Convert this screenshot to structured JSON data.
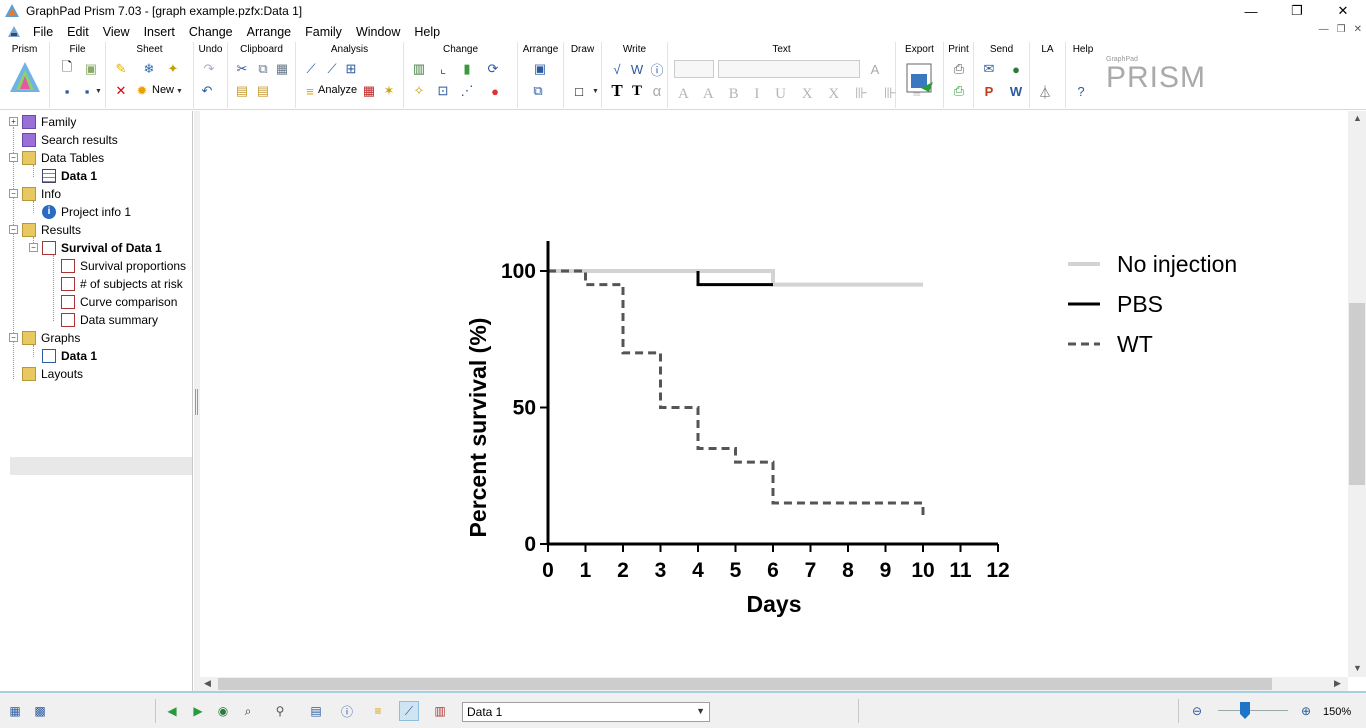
{
  "window": {
    "title": "GraphPad Prism 7.03 - [graph example.pzfx:Data 1]",
    "minimize": "—",
    "restore": "❐",
    "close": "✕"
  },
  "menu": [
    "File",
    "Edit",
    "View",
    "Insert",
    "Change",
    "Arrange",
    "Family",
    "Window",
    "Help"
  ],
  "ribbon": {
    "groups": [
      "Prism",
      "File",
      "Sheet",
      "Undo",
      "Clipboard",
      "Analysis",
      "Change",
      "Arrange",
      "Draw",
      "Write",
      "Text",
      "Export",
      "Print",
      "Send",
      "LA",
      "Help"
    ],
    "new_label": "New",
    "analyze_label": "Analyze",
    "logo_small": "GraphPad",
    "logo_big": "PRISM",
    "write_alpha": "α"
  },
  "navigator": {
    "family": "Family",
    "search_results": "Search results",
    "data_tables": "Data Tables",
    "data_table_1": "Data 1",
    "info": "Info",
    "project_info": "Project info 1",
    "results": "Results",
    "survival": "Survival of Data 1",
    "survival_children": [
      "Survival proportions",
      "# of subjects at risk",
      "Curve comparison",
      "Data summary"
    ],
    "graphs": "Graphs",
    "graph_1": "Data 1",
    "layouts": "Layouts"
  },
  "chart_data": {
    "type": "line",
    "subtype": "survival-step",
    "title": "",
    "xlabel": "Days",
    "ylabel": "Percent survival (%)",
    "xlim": [
      0,
      12
    ],
    "ylim": [
      0,
      100
    ],
    "xticks": [
      "0",
      "1",
      "2",
      "3",
      "4",
      "5",
      "6",
      "7",
      "8",
      "9",
      "10",
      "11",
      "12"
    ],
    "yticks": [
      "0",
      "50",
      "100"
    ],
    "legend_position": "top-right",
    "grid": false,
    "series": [
      {
        "name": "No injection",
        "color": "#d3d3d3",
        "dash": "solid",
        "steps": [
          [
            0,
            100
          ],
          [
            6,
            95
          ],
          [
            10,
            95
          ]
        ]
      },
      {
        "name": "PBS",
        "color": "#000000",
        "dash": "solid",
        "steps": [
          [
            4,
            100
          ],
          [
            4,
            95
          ],
          [
            6,
            95
          ]
        ]
      },
      {
        "name": "WT",
        "color": "#555555",
        "dash": "dashed",
        "steps": [
          [
            0,
            100
          ],
          [
            1,
            95
          ],
          [
            2,
            70
          ],
          [
            3,
            50
          ],
          [
            4,
            35
          ],
          [
            5,
            30
          ],
          [
            6,
            15
          ],
          [
            10,
            10
          ]
        ]
      }
    ]
  },
  "statusbar": {
    "sheet_value": "Data 1",
    "zoom": "150%"
  }
}
